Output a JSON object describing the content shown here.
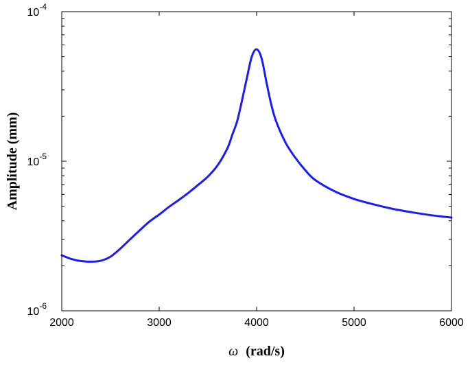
{
  "chart_data": {
    "type": "line",
    "title": "",
    "xlabel_symbol": "ω",
    "xlabel_unit": "(rad/s)",
    "ylabel": "Amplitude (mm)",
    "x_scale": "linear",
    "y_scale": "log",
    "xlim": [
      2000,
      6000
    ],
    "ylim": [
      1e-06,
      0.0001
    ],
    "x_ticks": [
      2000,
      3000,
      4000,
      5000,
      6000
    ],
    "y_ticks": [
      {
        "value": 1e-06,
        "base": "10",
        "exp": "-6"
      },
      {
        "value": 1e-05,
        "base": "10",
        "exp": "-5"
      },
      {
        "value": 0.0001,
        "base": "10",
        "exp": "-4"
      }
    ],
    "grid": false,
    "legend": "none",
    "series_color": "#1a1aff",
    "series": [
      {
        "x": [
          2000,
          2100,
          2200,
          2300,
          2400,
          2500,
          2600,
          2700,
          2800,
          2900,
          3000,
          3100,
          3200,
          3300,
          3400,
          3500,
          3600,
          3700,
          3750,
          3800,
          3850,
          3900,
          3950,
          4000,
          4050,
          4100,
          4150,
          4200,
          4300,
          4400,
          4500,
          4600,
          4800,
          5000,
          5200,
          5400,
          5600,
          5800,
          6000
        ],
        "y": [
          2.35e-06,
          2.22e-06,
          2.15e-06,
          2.13e-06,
          2.16e-06,
          2.3e-06,
          2.6e-06,
          3e-06,
          3.45e-06,
          3.95e-06,
          4.4e-06,
          4.95e-06,
          5.5e-06,
          6.15e-06,
          6.95e-06,
          7.9e-06,
          9.4e-06,
          1.22e-05,
          1.5e-05,
          1.85e-05,
          2.55e-05,
          3.6e-05,
          5e-05,
          5.6e-05,
          4.9e-05,
          3.4e-05,
          2.4e-05,
          1.85e-05,
          1.32e-05,
          1.05e-05,
          8.7e-06,
          7.5e-06,
          6.3e-06,
          5.6e-06,
          5.15e-06,
          4.8e-06,
          4.55e-06,
          4.35e-06,
          4.2e-06
        ]
      }
    ]
  }
}
